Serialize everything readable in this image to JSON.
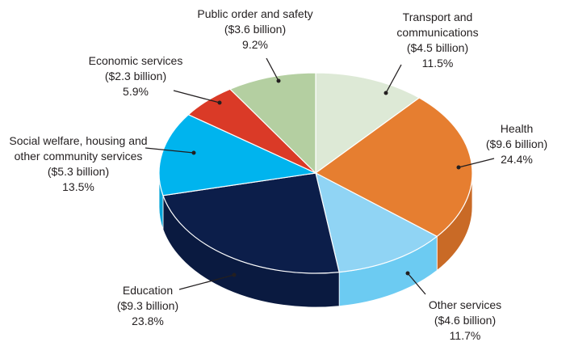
{
  "chart_data": {
    "type": "pie3d",
    "categories": [
      "Transport and communications",
      "Health",
      "Other services",
      "Education",
      "Social welfare, housing and other community services",
      "Economic services",
      "Public order and safety"
    ],
    "values": [
      11.5,
      24.4,
      11.7,
      23.8,
      13.5,
      5.9,
      9.2
    ],
    "value_labels": [
      "11.5%",
      "24.4%",
      "11.7%",
      "23.8%",
      "13.5%",
      "5.9%",
      "9.2%"
    ],
    "amounts": [
      4.5,
      9.6,
      4.6,
      9.3,
      5.3,
      2.3,
      3.6
    ],
    "amount_labels": [
      "($4.5 billion)",
      "($9.6 billion)",
      "($4.6 billion)",
      "($9.3 billion)",
      "($5.3 billion)",
      "($2.3 billion)",
      "($3.6 billion)"
    ],
    "colors": [
      "#dde9d6",
      "#e67e30",
      "#90d4f4",
      "#0c1e4a",
      "#00b4ee",
      "#da3a27",
      "#b4cfa1"
    ],
    "side_colors": [
      "#c9d8c2",
      "#c96a26",
      "#6ccbf2",
      "#0a1a40",
      "#00a3d8",
      "#b82e20",
      "#9fbd8b"
    ]
  }
}
